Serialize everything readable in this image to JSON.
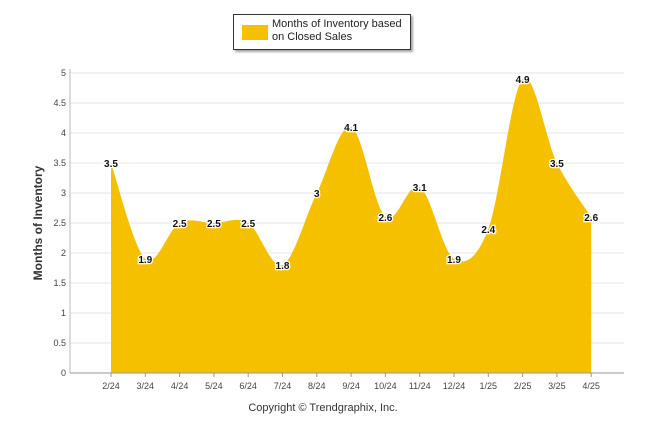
{
  "chart_data": {
    "type": "area",
    "categories": [
      "2/24",
      "3/24",
      "4/24",
      "5/24",
      "6/24",
      "7/24",
      "8/24",
      "9/24",
      "10/24",
      "11/24",
      "12/24",
      "1/25",
      "2/25",
      "3/25",
      "4/25"
    ],
    "series": [
      {
        "name": "Months of Inventory based on Closed Sales",
        "values": [
          3.5,
          1.9,
          2.5,
          2.5,
          2.5,
          1.8,
          3,
          4.1,
          2.6,
          3.1,
          1.9,
          2.4,
          4.9,
          3.5,
          2.6
        ],
        "labels": [
          "3.5",
          "1.9",
          "2.5",
          "2.5",
          "2.5",
          "1.8",
          "3",
          "4.1",
          "2.6",
          "3.1",
          "1.9",
          "2.4",
          "4.9",
          "3.5",
          "2.6"
        ],
        "color": "#f5c000"
      }
    ],
    "ylabel": "Months of Inventory",
    "xlabel": "",
    "ylim": [
      0,
      5
    ],
    "yticks": [
      "0",
      "0.5",
      "1",
      "1.5",
      "2",
      "2.5",
      "3",
      "3.5",
      "4",
      "4.5",
      "5"
    ],
    "grid": true,
    "legend_position": "top-center"
  },
  "legend": {
    "label": "Months of Inventory based on Closed Sales"
  },
  "footer": {
    "copyright": "Copyright © Trendgraphix, Inc."
  }
}
